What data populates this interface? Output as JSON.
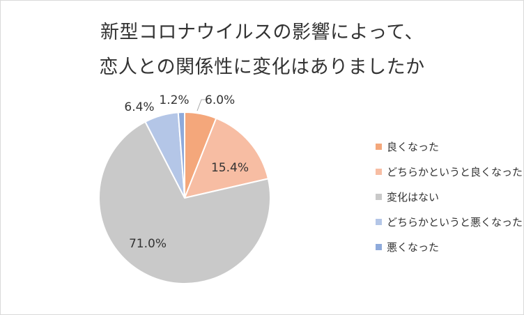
{
  "chart_data": {
    "type": "pie",
    "title_lines": [
      "新型コロナウイルスの影響によって、",
      "恋人との関係性に変化はありましたか"
    ],
    "slices": [
      {
        "name": "良くなった",
        "value": 6.0,
        "label": "6.0%",
        "color": "#f4a77b"
      },
      {
        "name": "どちらかというと良くなった",
        "value": 15.4,
        "label": "15.4%",
        "color": "#f7bda3"
      },
      {
        "name": "変化はない",
        "value": 71.0,
        "label": "71.0%",
        "color": "#c9c9c9"
      },
      {
        "name": "どちらかというと悪くなった",
        "value": 6.4,
        "label": "6.4%",
        "color": "#b4c6e7"
      },
      {
        "name": "悪くなった",
        "value": 1.2,
        "label": "1.2%",
        "color": "#8eaadb"
      }
    ],
    "start": "top",
    "direction": "clockwise",
    "legend": "right"
  }
}
